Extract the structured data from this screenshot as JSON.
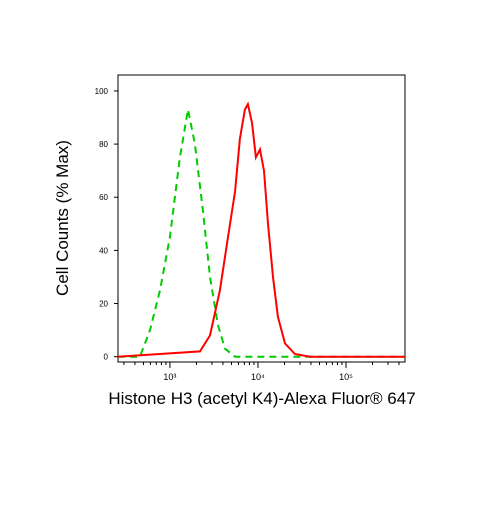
{
  "chart_data": {
    "type": "line",
    "xlabel": "Histone H3 (acetyl K4)-Alexa Fluor® 647",
    "ylabel": "Cell Counts (% Max)",
    "xscale": "log",
    "xlim": [
      257,
      468000
    ],
    "ylim": [
      -2,
      106
    ],
    "xticks": [
      {
        "value": 1000,
        "label": "10³"
      },
      {
        "value": 10000,
        "label": "10⁴"
      },
      {
        "value": 100000,
        "label": "10⁵"
      }
    ],
    "xminorticks": [
      300,
      400,
      500,
      600,
      700,
      800,
      900,
      2000,
      3000,
      4000,
      5000,
      6000,
      7000,
      8000,
      9000,
      20000,
      30000,
      40000,
      50000,
      60000,
      70000,
      80000,
      90000,
      200000,
      300000,
      400000
    ],
    "yticks": [
      0,
      20,
      40,
      60,
      80,
      100
    ],
    "series": [
      {
        "color": "#00cc00",
        "dash": true,
        "x": [
          257,
          456,
          593,
          770,
          1000,
          1299,
          1602,
          1923,
          2371,
          2850,
          3510,
          4217,
          5486,
          468000
        ],
        "values": [
          0,
          0,
          10,
          25,
          45,
          75,
          93,
          80,
          55,
          30,
          12,
          3,
          0,
          0
        ]
      },
      {
        "color": "#ff0000",
        "dash": false,
        "x": [
          257,
          2193,
          2850,
          3698,
          4560,
          5486,
          6240,
          7110,
          7690,
          8550,
          9480,
          10540,
          11700,
          13000,
          14800,
          16860,
          20270,
          26300,
          39000,
          468000
        ],
        "values": [
          0,
          2,
          8,
          25,
          45,
          62,
          82,
          93,
          95,
          88,
          75,
          78,
          70,
          50,
          30,
          15,
          5,
          1,
          0,
          0
        ]
      }
    ]
  }
}
